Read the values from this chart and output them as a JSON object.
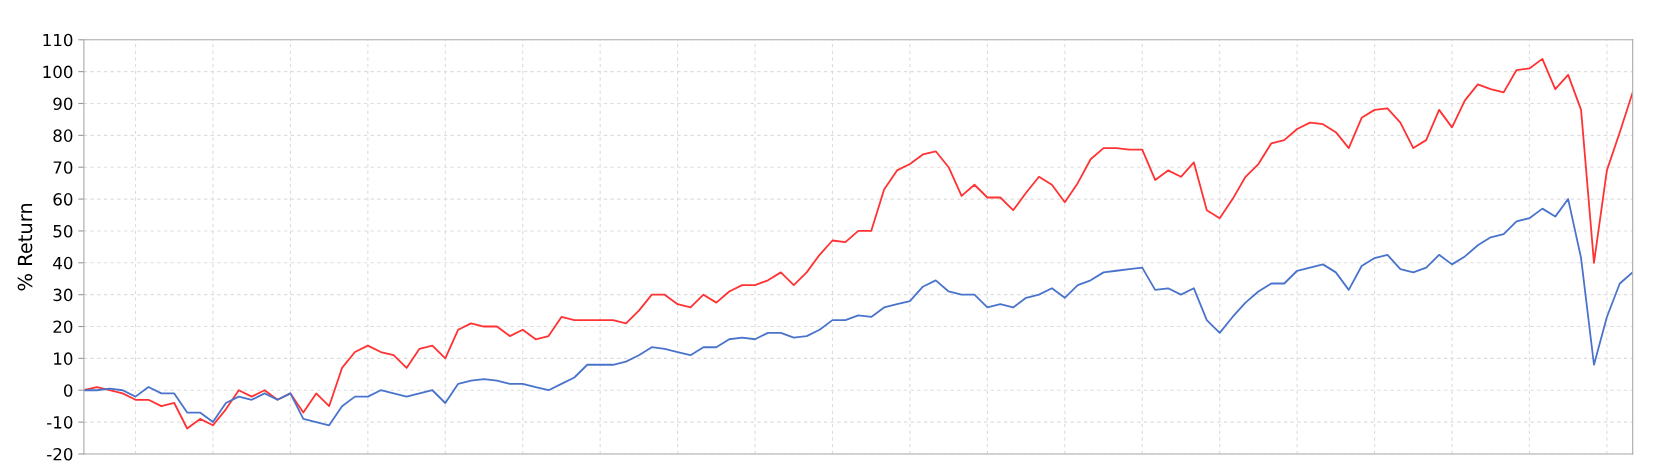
{
  "chart_data": {
    "type": "line",
    "ylabel": "% Return",
    "categories": [
      null,
      null,
      null,
      null,
      null,
      null,
      null,
      null,
      null,
      null,
      null,
      null,
      null,
      null,
      null,
      null,
      null,
      null,
      null,
      null,
      null,
      null,
      null,
      null,
      null,
      null,
      null,
      null,
      null,
      null,
      null,
      null,
      null,
      null,
      null,
      null,
      null,
      null,
      null,
      null,
      null,
      null,
      null,
      null,
      null,
      null,
      null,
      null,
      null,
      null,
      null,
      null,
      null,
      null,
      null,
      null,
      null,
      null,
      null,
      null,
      null,
      null,
      null,
      null,
      null,
      null,
      null,
      null,
      null,
      null,
      null,
      null,
      null,
      null,
      null,
      null,
      null,
      null,
      null,
      null,
      null,
      null,
      null,
      null,
      null,
      null,
      null,
      null,
      null,
      null,
      null,
      null,
      null,
      null,
      null,
      null,
      null,
      null,
      null,
      null,
      null,
      null,
      null,
      null,
      null,
      null,
      null,
      null,
      null,
      null,
      null,
      null,
      null,
      null,
      null,
      null,
      null,
      null,
      null,
      null,
      null
    ],
    "series": [
      {
        "color": "#ff3333",
        "values": [
          0,
          1,
          0,
          -1,
          -3,
          -3,
          -5,
          -4,
          -12,
          -9,
          -11,
          -6,
          0,
          -2,
          0,
          -3,
          -1,
          -7,
          -1,
          -5,
          7,
          12,
          14,
          12,
          11,
          7,
          13,
          14,
          10,
          19,
          21,
          20,
          20,
          17,
          19,
          16,
          17,
          23,
          22,
          22,
          22,
          22,
          21,
          25,
          30,
          30,
          27,
          26,
          30,
          27.5,
          31,
          33,
          33,
          34.5,
          37,
          33,
          37,
          42.5,
          47,
          46.5,
          50,
          50,
          63,
          69,
          71,
          74,
          75,
          70,
          61,
          64.5,
          60.5,
          60.5,
          56.5,
          62,
          67,
          64.5,
          59,
          65,
          72.5,
          76,
          76,
          75.5,
          75.5,
          66,
          69,
          67,
          71.5,
          56.5,
          54,
          60,
          67,
          71,
          77.5,
          78.5,
          82,
          84,
          83.5,
          81,
          76,
          85.5,
          88,
          88.5,
          84,
          76,
          78.5,
          88,
          82.5,
          91,
          96,
          94.5,
          93.5,
          100.5,
          101,
          104,
          94.5,
          99,
          88,
          40,
          69,
          81,
          93.5
        ]
      },
      {
        "color": "#4a74cc",
        "values": [
          0,
          0,
          0.5,
          0,
          -2,
          1,
          -1,
          -1,
          -7,
          -7,
          -10,
          -4,
          -2,
          -3,
          -1,
          -3,
          -1,
          -9,
          -10,
          -11,
          -5,
          -2,
          -2,
          0,
          -1,
          -2,
          -1,
          0,
          -4,
          2,
          3,
          3.5,
          3,
          2,
          2,
          1,
          0,
          2,
          4,
          8,
          8,
          8,
          9,
          11,
          13.5,
          13,
          12,
          11,
          13.5,
          13.5,
          16,
          16.5,
          16,
          18,
          18,
          16.5,
          17,
          19,
          22,
          22,
          23.5,
          23,
          26,
          27,
          28,
          32.5,
          34.5,
          31,
          30,
          30,
          26,
          27,
          26,
          29,
          30,
          32,
          29,
          33,
          34.5,
          37,
          37.5,
          38,
          38.5,
          31.5,
          32,
          30,
          32,
          22,
          18,
          23,
          27.5,
          31,
          33.5,
          33.5,
          37.5,
          38.5,
          39.5,
          37,
          31.5,
          39,
          41.5,
          42.5,
          38,
          37,
          38.5,
          42.5,
          39.5,
          42,
          45.5,
          48,
          49,
          53,
          54,
          57,
          54.5,
          60,
          41.5,
          8,
          23,
          33.5,
          37
        ]
      }
    ],
    "ylim": [
      -20,
      110
    ],
    "yticks": [
      -20,
      -10,
      0,
      10,
      20,
      30,
      40,
      50,
      60,
      70,
      80,
      90,
      100,
      110
    ],
    "grid": true,
    "tick_labels": "y",
    "line_style": "solid",
    "marker": "none"
  }
}
